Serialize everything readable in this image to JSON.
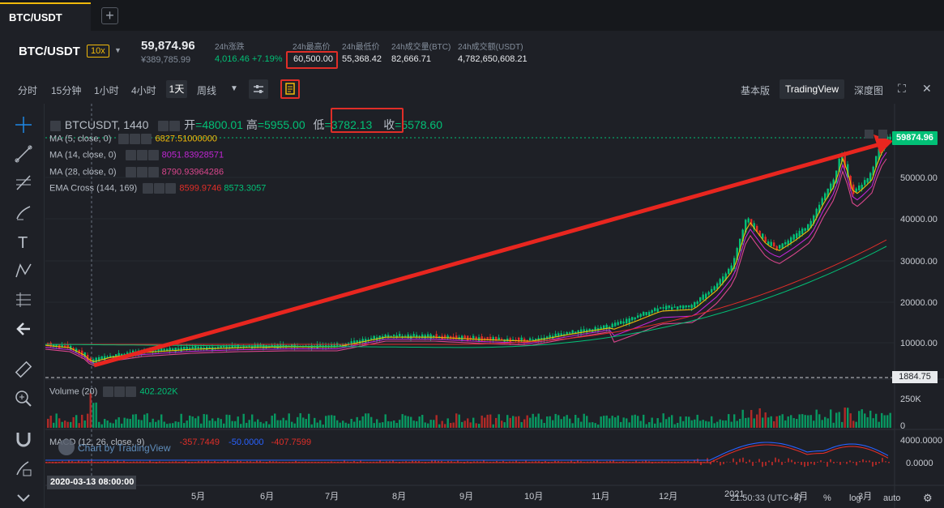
{
  "tabs": [
    {
      "label": "BTC/USDT"
    }
  ],
  "ticker": {
    "pair": "BTC/USDT",
    "leverage": "10x",
    "price": "59,874.96",
    "price_cny": "¥389,785.99",
    "stats": [
      {
        "label": "24h涨跌",
        "value": "4,016.46 +7.19%"
      },
      {
        "label": "24h最高价",
        "value": "60,500.00"
      },
      {
        "label": "24h最低价",
        "value": "55,368.42"
      },
      {
        "label": "24h成交量(BTC)",
        "value": "82,666.71"
      },
      {
        "label": "24h成交额(USDT)",
        "value": "4,782,650,608.21"
      }
    ]
  },
  "toolbar": {
    "intervals": [
      "分时",
      "15分钟",
      "1小时",
      "4小时",
      "1天",
      "周线"
    ],
    "selected_interval": "1天",
    "views": [
      "基本版",
      "TradingView",
      "深度图"
    ],
    "selected_view": "TradingView"
  },
  "chart": {
    "symbol": "BTCUSDT, 1440",
    "open_label": "开",
    "open": "=4800.01",
    "high_label": "高",
    "high": "=5955.00",
    "low_label": "低",
    "low": "=3782.13",
    "close_label": "收",
    "close": "=5578.60",
    "indicators": [
      {
        "label": "MA (5, close, 0)",
        "value": "6827.51000000",
        "color": "#f0b90b"
      },
      {
        "label": "MA (14, close, 0)",
        "value": "8051.83928571",
        "color": "#c026d3"
      },
      {
        "label": "MA (28, close, 0)",
        "value": "8790.93964286",
        "color": "#d9468c"
      },
      {
        "label": "EMA Cross (144, 169)",
        "value": "8599.9746",
        "value2": "8573.3057",
        "color": "#e02e28",
        "color2": "#02c076"
      }
    ],
    "volume": {
      "label": "Volume (20)",
      "value": "402.202K"
    },
    "macd": {
      "label": "MACD (12, 26, close, 9)",
      "values": [
        "-357.7449",
        "-50.0000",
        "-407.7599"
      ]
    },
    "watermark": "Chart by TradingView",
    "price_axis": [
      "50000.00",
      "40000.00",
      "30000.00",
      "20000.00",
      "10000.00"
    ],
    "current_price": "59874.96",
    "low_marker": "1884.75",
    "volume_axis": [
      "250K",
      "0"
    ],
    "macd_axis": [
      "4000.0000",
      "0.0000"
    ],
    "months": [
      "5月",
      "6月",
      "7月",
      "8月",
      "9月",
      "10月",
      "11月",
      "12月",
      "2021",
      "2月",
      "3月"
    ],
    "crosshair_date": "2020-03-13 08:00:00",
    "clock": "21:50:33 (UTC+8)",
    "bottom_controls": [
      "%",
      "log",
      "auto"
    ]
  }
}
